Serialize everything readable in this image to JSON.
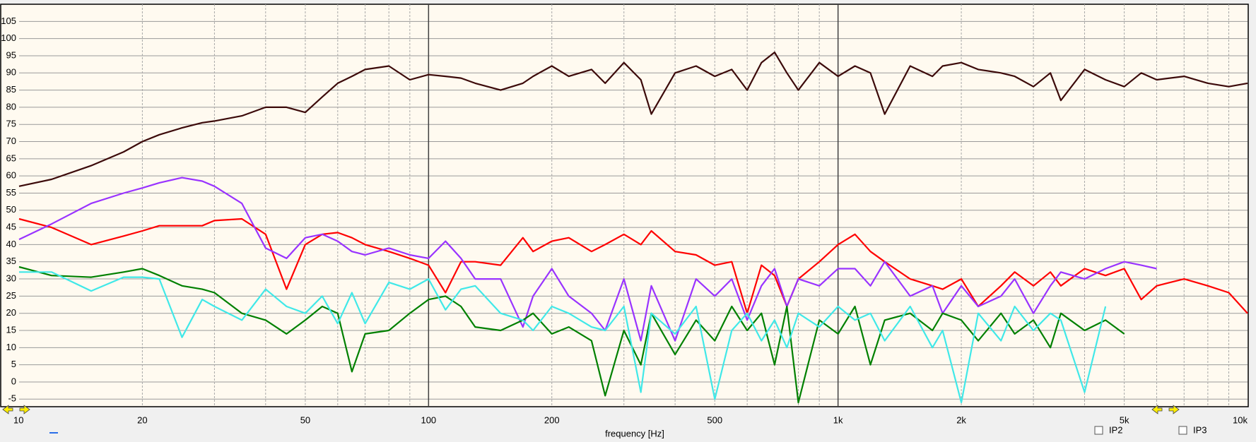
{
  "chart_data": {
    "type": "line",
    "xlabel": "frequency [Hz]",
    "xscale": "log",
    "xlim": [
      10,
      10000
    ],
    "ylim": [
      -7,
      110
    ],
    "xticks": [
      10,
      20,
      50,
      100,
      200,
      500,
      {
        "value": 1000,
        "label": "1k"
      },
      {
        "value": 2000,
        "label": "2k"
      },
      {
        "value": 5000,
        "label": "5k"
      },
      {
        "value": 10000,
        "label": "10k"
      }
    ],
    "xminorticks": [
      20,
      30,
      40,
      50,
      60,
      70,
      80,
      90,
      200,
      300,
      400,
      500,
      600,
      700,
      800,
      900,
      2000,
      3000,
      4000,
      5000,
      6000,
      7000,
      8000,
      9000
    ],
    "xmajorticks": [
      100,
      1000
    ],
    "yticks": [
      -5,
      0,
      5,
      10,
      15,
      20,
      25,
      30,
      35,
      40,
      45,
      50,
      55,
      60,
      65,
      70,
      75,
      80,
      85,
      90,
      95,
      100,
      105
    ],
    "grid": true,
    "x": [
      10,
      12,
      15,
      18,
      20,
      22,
      25,
      28,
      30,
      35,
      40,
      45,
      50,
      55,
      60,
      65,
      70,
      80,
      90,
      100,
      110,
      120,
      130,
      150,
      170,
      180,
      200,
      220,
      250,
      270,
      300,
      330,
      350,
      400,
      450,
      500,
      550,
      600,
      650,
      700,
      750,
      800,
      900,
      1000,
      1100,
      1200,
      1300,
      1500,
      1700,
      1800,
      2000,
      2200,
      2500,
      2700,
      3000,
      3300,
      3500,
      4000,
      4500,
      5000,
      5500,
      6000,
      7000,
      8000,
      9000,
      10000
    ],
    "series": [
      {
        "color": "#3c0a0a",
        "values": [
          57,
          59,
          63,
          67,
          70,
          72,
          74,
          75.5,
          76,
          77.5,
          80,
          80,
          78.5,
          83,
          87,
          89,
          91,
          92,
          88,
          89.5,
          89,
          88.5,
          87,
          85,
          87,
          89,
          92,
          89,
          91,
          87,
          93,
          88,
          78,
          90,
          92,
          89,
          91,
          85,
          93,
          96,
          90,
          85,
          93,
          89,
          92,
          90,
          78,
          92,
          89,
          92,
          93,
          91,
          90,
          89,
          86,
          90,
          82,
          91,
          88,
          86,
          90,
          88,
          89,
          87,
          86,
          87
        ]
      },
      {
        "color": "#ff0000",
        "values": [
          47.5,
          45,
          40,
          42.5,
          44,
          45.5,
          45.5,
          45.5,
          47,
          47.5,
          43,
          27,
          40,
          43,
          43.5,
          42,
          40,
          38,
          36,
          34,
          26,
          35,
          35,
          34,
          42,
          38,
          41,
          42,
          38,
          40,
          43,
          40,
          44,
          38,
          37,
          34,
          35,
          20,
          34,
          31,
          22,
          30,
          35,
          40,
          43,
          38,
          35,
          30,
          28,
          27,
          30,
          22,
          28,
          32,
          28,
          32,
          28,
          33,
          31,
          33,
          24,
          28,
          30,
          28,
          26,
          20
        ]
      },
      {
        "color": "#9933ff",
        "values": [
          41.5,
          46,
          52,
          55,
          56.5,
          58,
          59.5,
          58.5,
          57,
          52,
          39,
          36,
          42,
          43,
          41,
          38,
          37,
          39,
          37,
          36,
          41,
          36,
          30,
          30,
          16,
          25,
          33,
          25,
          20,
          15,
          30,
          12,
          28,
          12,
          30,
          25,
          30,
          18,
          28,
          33,
          22,
          30,
          28,
          33,
          33,
          28,
          35,
          25,
          28,
          20,
          28,
          22,
          25,
          30,
          20,
          28,
          32,
          30,
          33,
          35,
          34,
          33,
          null,
          null,
          null,
          null
        ]
      },
      {
        "color": "#008000",
        "values": [
          33.5,
          31,
          30.5,
          32,
          33,
          31,
          28,
          27,
          26,
          20,
          18,
          14,
          18,
          22,
          20,
          3,
          14,
          15,
          20,
          24,
          25,
          22,
          16,
          15,
          18,
          20,
          14,
          16,
          12,
          -4,
          15,
          5,
          20,
          8,
          18,
          12,
          22,
          15,
          20,
          5,
          22,
          -6,
          18,
          14,
          22,
          5,
          18,
          20,
          15,
          20,
          18,
          12,
          20,
          14,
          18,
          10,
          20,
          15,
          18,
          14,
          null,
          null,
          null,
          null,
          null,
          null
        ]
      },
      {
        "color": "#40e8e8",
        "values": [
          32,
          32,
          26.5,
          30.5,
          30.5,
          30,
          13,
          24,
          22,
          18,
          27,
          22,
          20,
          25,
          17,
          26,
          17,
          29,
          27,
          30,
          21,
          27,
          28,
          20,
          18,
          15,
          22,
          20,
          16,
          15,
          22,
          -3,
          20,
          14,
          22,
          -5,
          15,
          20,
          12,
          18,
          10,
          20,
          16,
          22,
          18,
          20,
          12,
          22,
          10,
          15,
          -6,
          20,
          12,
          22,
          15,
          20,
          18,
          -3,
          22,
          null,
          null,
          null,
          null,
          null,
          null,
          null
        ]
      }
    ]
  },
  "controls": {
    "ip2": "IP2",
    "ip3": "IP3"
  }
}
